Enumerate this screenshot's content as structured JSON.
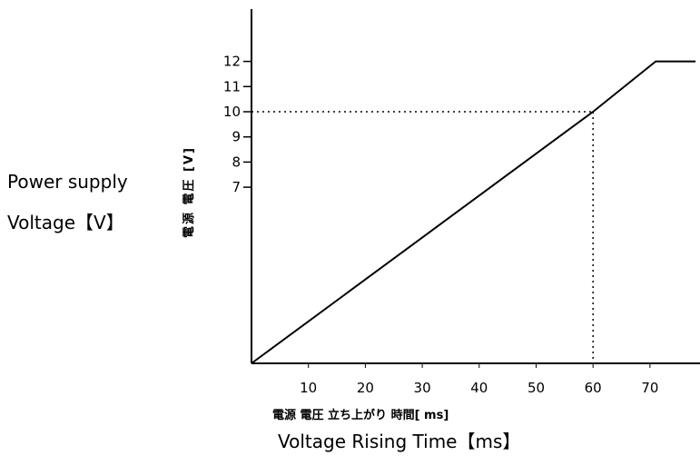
{
  "labels": {
    "ylabel_en_line1": "Power supply",
    "ylabel_en_line2": "Voltage【V】",
    "ylabel_jp": "電源 電圧 [V]",
    "xlabel_jp": "電源 電圧 立ち上がり 時間[ ms]",
    "xlabel_en": "Voltage Rising Time【ms】"
  },
  "chart_data": {
    "type": "line",
    "title": "",
    "xlabel": "Voltage Rising Time【ms】",
    "ylabel": "Power supply Voltage【V】",
    "x_ticks": [
      10,
      20,
      30,
      40,
      50,
      60,
      70
    ],
    "y_ticks": [
      7,
      8,
      9,
      10,
      11,
      12
    ],
    "xlim": [
      0,
      71
    ],
    "ylim": [
      0,
      12
    ],
    "grid": false,
    "series": [
      {
        "points": [
          [
            0,
            0
          ],
          [
            60,
            10
          ],
          [
            71,
            12
          ],
          [
            78,
            12
          ]
        ],
        "color": "#000000"
      }
    ],
    "reference": {
      "x": 60,
      "y": 10,
      "style": "dotted"
    }
  }
}
